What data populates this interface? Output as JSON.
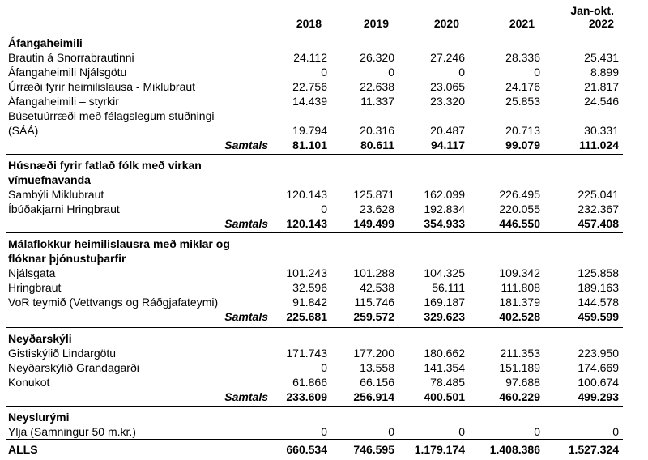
{
  "page": {
    "background_color": "#ffffff",
    "text_color": "#000000",
    "rule_color": "#000000"
  },
  "table": {
    "year_headers": [
      "2018",
      "2019",
      "2020",
      "2021",
      "Jan-okt.\n2022"
    ],
    "year_keys": [
      "2018",
      "2019",
      "2020",
      "2021",
      "jan-okt-2022"
    ],
    "samtals_label": "Samtals",
    "sections": [
      {
        "title": "Áfangaheimili",
        "rows": [
          {
            "label": "Brautin á Snorrabrautinni",
            "values": [
              "24.112",
              "26.320",
              "27.246",
              "28.336",
              "25.431"
            ]
          },
          {
            "label": "Áfangaheimili Njálsgötu",
            "values": [
              "0",
              "0",
              "0",
              "0",
              "8.899"
            ]
          },
          {
            "label": "Úrræði fyrir heimilislausa - Miklubraut",
            "values": [
              "22.756",
              "22.638",
              "23.065",
              "24.176",
              "21.817"
            ]
          },
          {
            "label": "Áfangaheimili – styrkir",
            "values": [
              "14.439",
              "11.337",
              "23.320",
              "25.853",
              "24.546"
            ]
          },
          {
            "label": "Búsetuúrræði með félagslegum stuðningi\n(SÁÁ)",
            "values": [
              "19.794",
              "20.316",
              "20.487",
              "20.713",
              "30.331"
            ]
          }
        ],
        "samtals_values": [
          "81.101",
          "80.611",
          "94.117",
          "99.079",
          "111.024"
        ],
        "divider": "single"
      },
      {
        "title": "Húsnæði fyrir fatlað fólk með virkan\nvímuefnavanda",
        "rows": [
          {
            "label": "Sambýli Miklubraut",
            "values": [
              "120.143",
              "125.871",
              "162.099",
              "226.495",
              "225.041"
            ]
          },
          {
            "label": "Íbúðakjarni Hringbraut",
            "values": [
              "0",
              "23.628",
              "192.834",
              "220.055",
              "232.367"
            ]
          }
        ],
        "samtals_values": [
          "120.143",
          "149.499",
          "354.933",
          "446.550",
          "457.408"
        ],
        "divider": "single"
      },
      {
        "title": "Málaflokkur heimilislausra með miklar og\nflóknar þjónustuþarfir",
        "rows": [
          {
            "label": "Njálsgata",
            "values": [
              "101.243",
              "101.288",
              "104.325",
              "109.342",
              "125.858"
            ]
          },
          {
            "label": "Hringbraut",
            "values": [
              "32.596",
              "42.538",
              "56.111",
              "111.808",
              "189.163"
            ]
          },
          {
            "label": "VoR teymið (Vettvangs og Ráðgjafateymi)",
            "values": [
              "91.842",
              "115.746",
              "169.187",
              "181.379",
              "144.578"
            ]
          }
        ],
        "samtals_values": [
          "225.681",
          "259.572",
          "329.623",
          "402.528",
          "459.599"
        ],
        "divider": "double"
      },
      {
        "title": "Neyðarskýli",
        "rows": [
          {
            "label": "Gistiskýlið Lindargötu",
            "values": [
              "171.743",
              "177.200",
              "180.662",
              "211.353",
              "223.950"
            ]
          },
          {
            "label": "Neyðarskýlið Grandagarði",
            "values": [
              "0",
              "13.558",
              "141.354",
              "151.189",
              "174.669"
            ]
          },
          {
            "label": "Konukot",
            "values": [
              "61.866",
              "66.156",
              "78.485",
              "97.688",
              "100.674"
            ]
          }
        ],
        "samtals_values": [
          "233.609",
          "256.914",
          "400.501",
          "460.229",
          "499.293"
        ],
        "divider": "single"
      },
      {
        "title": "Neyslurými",
        "rows": [
          {
            "label": "Ylja (Samningur 50 m.kr.)",
            "values": [
              "0",
              "0",
              "0",
              "0",
              "0"
            ]
          }
        ],
        "samtals_values": null,
        "divider": "single"
      }
    ],
    "total_row": {
      "label": "ALLS",
      "values": [
        "660.534",
        "746.595",
        "1.179.174",
        "1.408.386",
        "1.527.324"
      ]
    }
  }
}
